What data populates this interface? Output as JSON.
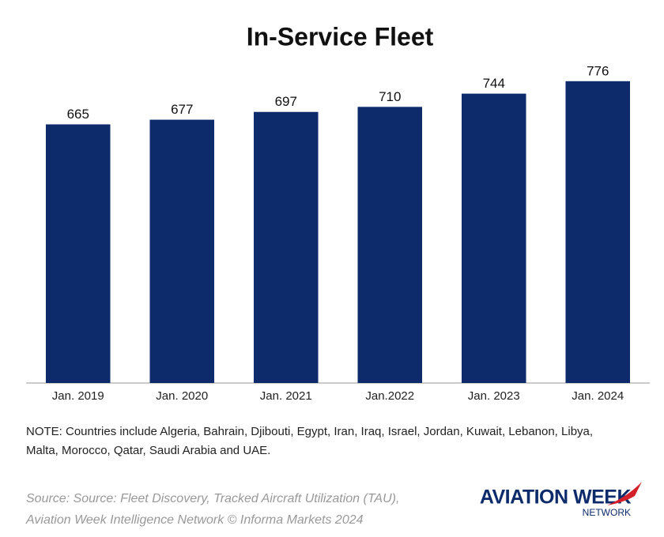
{
  "chart_data": {
    "type": "bar",
    "title": "In-Service Fleet",
    "categories": [
      "Jan. 2019",
      "Jan. 2020",
      "Jan. 2021",
      "Jan.2022",
      "Jan. 2023",
      "Jan. 2024"
    ],
    "values": [
      665,
      677,
      697,
      710,
      744,
      776
    ],
    "color": "#0d2b6b",
    "ylim": [
      0,
      800
    ],
    "note": [
      "NOTE: Countries include Algeria, Bahrain, Djibouti, Egypt, Iran, Iraq, Israel, Jordan, Kuwait, Lebanon, Libya,",
      "Malta, Morocco, Qatar, Saudi Arabia and UAE."
    ],
    "source": [
      "Source: Source: Fleet Discovery, Tracked Aircraft Utilization (TAU),",
      "Aviation Week Intelligence Network  © Informa Markets 2024"
    ],
    "logo": {
      "name": "AVIATION WEEK",
      "sub": "NETWORK"
    }
  }
}
